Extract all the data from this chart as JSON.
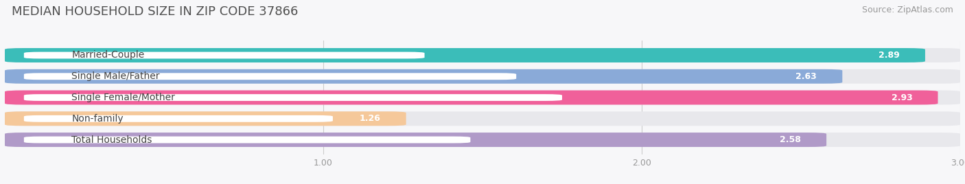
{
  "title": "MEDIAN HOUSEHOLD SIZE IN ZIP CODE 37866",
  "source": "Source: ZipAtlas.com",
  "categories": [
    "Married-Couple",
    "Single Male/Father",
    "Single Female/Mother",
    "Non-family",
    "Total Households"
  ],
  "values": [
    2.89,
    2.63,
    2.93,
    1.26,
    2.58
  ],
  "bar_colors": [
    "#3bbdb9",
    "#8aaad8",
    "#f0609a",
    "#f5c89a",
    "#b09ac8"
  ],
  "bar_bg_color": "#e8e8ec",
  "xlim_start": 0.0,
  "xlim_end": 3.0,
  "xticks": [
    1.0,
    2.0,
    3.0
  ],
  "title_fontsize": 13,
  "source_fontsize": 9,
  "label_fontsize": 10,
  "value_fontsize": 9,
  "bg_color": "#f7f7f9",
  "bar_height": 0.68,
  "bar_gap": 0.32
}
